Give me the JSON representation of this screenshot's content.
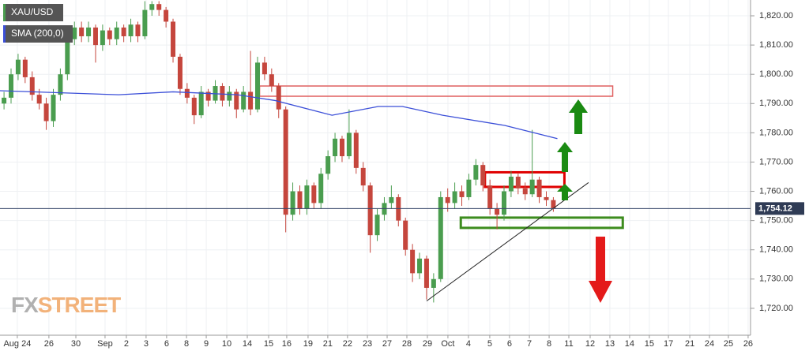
{
  "chart_data": {
    "type": "candlestick",
    "series": [
      {
        "name": "XAU/USD",
        "up_color": "#4a9d4f",
        "down_color": "#c5463d",
        "x": [
          0.2,
          0.55,
          0.9,
          1.25,
          1.6,
          1.95,
          2.3,
          2.65,
          3,
          3.35,
          3.7,
          4.05,
          4.4,
          4.75,
          5.1,
          5.45,
          5.8,
          6.15,
          6.5,
          6.85,
          7.2,
          7.55,
          7.9,
          8.25,
          8.6,
          8.95,
          9.3,
          9.65,
          10,
          10.35,
          10.7,
          11.05,
          11.4,
          11.75,
          12.1,
          12.45,
          12.8,
          13.15,
          13.5,
          13.85,
          14.2,
          14.55,
          14.9,
          15.25,
          15.6,
          15.95,
          16.3,
          16.65,
          17,
          17.35,
          17.7,
          18.05,
          18.4,
          18.75,
          19.1,
          19.45,
          19.8,
          20.15,
          20.5,
          20.85,
          21.2,
          21.55,
          21.9,
          22.25,
          22.6,
          22.95,
          23.3,
          23.65,
          24,
          24.35,
          24.7,
          25.05,
          25.4,
          25.75,
          26.1,
          26.45,
          26.8,
          27.15,
          27.5
        ],
        "open": [
          1790,
          1792,
          1800,
          1805,
          1799,
          1793,
          1790,
          1784,
          1793,
          1800,
          1812,
          1816,
          1813,
          1816,
          1810,
          1815,
          1812,
          1816,
          1813,
          1817,
          1813,
          1822,
          1824,
          1822,
          1818,
          1806,
          1795,
          1792,
          1786,
          1794,
          1791,
          1796,
          1791,
          1794,
          1788,
          1794,
          1788,
          1804,
          1800,
          1796,
          1788,
          1752,
          1760,
          1754,
          1762,
          1756,
          1766,
          1772,
          1778,
          1772,
          1780,
          1768,
          1762,
          1745,
          1752,
          1756,
          1758,
          1750,
          1740,
          1732,
          1737,
          1727,
          1730,
          1758,
          1756,
          1760,
          1758,
          1764,
          1769,
          1762,
          1754,
          1752,
          1760,
          1765,
          1761,
          1759,
          1764,
          1758,
          1757
        ],
        "high": [
          1794,
          1802,
          1807,
          1806,
          1801,
          1795,
          1792,
          1795,
          1802,
          1814,
          1818,
          1818,
          1818,
          1817,
          1817,
          1816,
          1818,
          1817,
          1819,
          1818,
          1825,
          1825,
          1825,
          1823,
          1819,
          1807,
          1797,
          1793,
          1796,
          1795,
          1798,
          1797,
          1796,
          1795,
          1796,
          1808,
          1806,
          1806,
          1802,
          1797,
          1789,
          1763,
          1762,
          1764,
          1763,
          1768,
          1774,
          1780,
          1779,
          1788,
          1781,
          1770,
          1763,
          1754,
          1758,
          1762,
          1759,
          1751,
          1742,
          1739,
          1738,
          1732,
          1760,
          1761,
          1763,
          1762,
          1766,
          1771,
          1770,
          1764,
          1756,
          1762,
          1767,
          1766,
          1763,
          1781,
          1765,
          1760,
          1758
        ],
        "low": [
          1788,
          1790,
          1798,
          1797,
          1791,
          1788,
          1781,
          1782,
          1791,
          1798,
          1810,
          1811,
          1811,
          1804,
          1808,
          1810,
          1810,
          1811,
          1811,
          1811,
          1812,
          1820,
          1820,
          1816,
          1804,
          1793,
          1790,
          1783,
          1785,
          1789,
          1790,
          1789,
          1789,
          1785,
          1787,
          1786,
          1787,
          1798,
          1794,
          1785,
          1746,
          1750,
          1752,
          1752,
          1754,
          1754,
          1764,
          1770,
          1770,
          1771,
          1766,
          1760,
          1739,
          1743,
          1750,
          1754,
          1748,
          1738,
          1729,
          1730,
          1723,
          1722,
          1729,
          1753,
          1754,
          1755,
          1757,
          1762,
          1760,
          1752,
          1747,
          1750,
          1758,
          1759,
          1757,
          1758,
          1756,
          1755,
          1753
        ],
        "close": [
          1792,
          1800,
          1805,
          1799,
          1793,
          1790,
          1784,
          1793,
          1800,
          1812,
          1816,
          1813,
          1816,
          1810,
          1815,
          1812,
          1816,
          1813,
          1817,
          1813,
          1822,
          1824,
          1822,
          1818,
          1806,
          1795,
          1792,
          1786,
          1794,
          1791,
          1796,
          1791,
          1794,
          1788,
          1794,
          1788,
          1804,
          1800,
          1796,
          1788,
          1752,
          1760,
          1754,
          1762,
          1756,
          1766,
          1772,
          1778,
          1772,
          1780,
          1768,
          1762,
          1745,
          1752,
          1756,
          1758,
          1750,
          1740,
          1732,
          1737,
          1727,
          1730,
          1758,
          1756,
          1760,
          1758,
          1764,
          1769,
          1762,
          1754,
          1752,
          1760,
          1765,
          1761,
          1759,
          1764,
          1758,
          1757,
          1754.12
        ]
      },
      {
        "name": "SMA (200,0)",
        "color": "#3b4fd8",
        "x": [
          0,
          5.9,
          8.6,
          11.8,
          13.7,
          16.5,
          18.8,
          20,
          22,
          25.1,
          27.7
        ],
        "values": [
          1794.4,
          1793,
          1794,
          1793,
          1791,
          1786,
          1789,
          1789,
          1786,
          1782.5,
          1778
        ]
      }
    ],
    "last_price": {
      "value": 1754.12,
      "label": "1,754.12"
    },
    "ylim": [
      1710.8,
      1825.4
    ],
    "yticks": [
      {
        "value": 1720,
        "label": "1,720.00"
      },
      {
        "value": 1730,
        "label": "1,730.00"
      },
      {
        "value": 1740,
        "label": "1,740.00"
      },
      {
        "value": 1750,
        "label": "1,750.00"
      },
      {
        "value": 1760,
        "label": "1,760.00"
      },
      {
        "value": 1770,
        "label": "1,770.00"
      },
      {
        "value": 1780,
        "label": "1,780.00"
      },
      {
        "value": 1790,
        "label": "1,790.00"
      },
      {
        "value": 1800,
        "label": "1,800.00"
      },
      {
        "value": 1810,
        "label": "1,810.00"
      },
      {
        "value": 1820,
        "label": "1,820.00"
      }
    ],
    "xlim": [
      0,
      37.3
    ],
    "xticks": [
      {
        "value": 0.86,
        "label": "Aug 24"
      },
      {
        "value": 2.43,
        "label": "26"
      },
      {
        "value": 3.77,
        "label": "30"
      },
      {
        "value": 5.22,
        "label": "Sep"
      },
      {
        "value": 6.28,
        "label": "2"
      },
      {
        "value": 7.26,
        "label": "3"
      },
      {
        "value": 8.28,
        "label": "6"
      },
      {
        "value": 9.27,
        "label": "8"
      },
      {
        "value": 10.25,
        "label": "9"
      },
      {
        "value": 11.27,
        "label": "10"
      },
      {
        "value": 12.29,
        "label": "14"
      },
      {
        "value": 13.35,
        "label": "15"
      },
      {
        "value": 14.25,
        "label": "16"
      },
      {
        "value": 15.31,
        "label": "19"
      },
      {
        "value": 16.29,
        "label": "21"
      },
      {
        "value": 17.27,
        "label": "22"
      },
      {
        "value": 18.26,
        "label": "23"
      },
      {
        "value": 19.24,
        "label": "27"
      },
      {
        "value": 20.22,
        "label": "28"
      },
      {
        "value": 21.24,
        "label": "29"
      },
      {
        "value": 22.26,
        "label": "Oct"
      },
      {
        "value": 23.28,
        "label": "4"
      },
      {
        "value": 24.34,
        "label": "5"
      },
      {
        "value": 25.32,
        "label": "6"
      },
      {
        "value": 26.31,
        "label": "7"
      },
      {
        "value": 27.29,
        "label": "8"
      },
      {
        "value": 28.27,
        "label": "11"
      },
      {
        "value": 29.33,
        "label": "12"
      },
      {
        "value": 30.31,
        "label": "13"
      },
      {
        "value": 31.29,
        "label": "14"
      },
      {
        "value": 32.27,
        "label": "15"
      },
      {
        "value": 33.22,
        "label": "17"
      },
      {
        "value": 34.28,
        "label": "21"
      },
      {
        "value": 35.26,
        "label": "24"
      },
      {
        "value": 36.2,
        "label": "25"
      },
      {
        "value": 37.18,
        "label": "26"
      }
    ],
    "grid": true,
    "zones": [
      {
        "xlim": [
          12.9,
          30.45
        ],
        "ylim": [
          1792.5,
          1796
        ],
        "color": "#e06060"
      },
      {
        "xlim": [
          24.1,
          28.05
        ],
        "ylim": [
          1761.5,
          1766.5
        ],
        "color": "#e00000"
      },
      {
        "xlim": [
          22.9,
          30.95
        ],
        "ylim": [
          1747.5,
          1751
        ],
        "color": "#3d8c1e"
      }
    ],
    "trendline": {
      "x": [
        21.2,
        29.25
      ],
      "y": [
        1722.5,
        1763
      ]
    },
    "watermark": [
      "FX",
      "STREET"
    ]
  }
}
